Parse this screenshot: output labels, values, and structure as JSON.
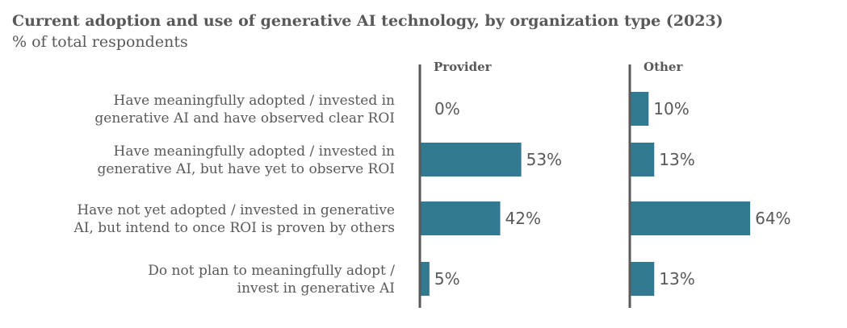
{
  "chart_data": {
    "type": "bar",
    "orientation": "horizontal",
    "title": "Current adoption and use of generative AI technology, by organization type (2023)",
    "subtitle": "% of total respondents",
    "categories": [
      [
        "Have meaningfully adopted / invested in",
        "generative AI and have observed clear ROI"
      ],
      [
        "Have meaningfully adopted / invested in",
        "generative AI, but have yet to observe ROI"
      ],
      [
        "Have not yet adopted / invested in generative",
        "AI, but intend to once ROI is proven by others"
      ],
      [
        "Do not plan to meaningfully adopt /",
        "invest in generative AI"
      ]
    ],
    "series": [
      {
        "name": "Provider",
        "values": [
          0,
          53,
          42,
          5
        ],
        "labels": [
          "0%",
          "53%",
          "42%",
          "5%"
        ]
      },
      {
        "name": "Other",
        "values": [
          10,
          13,
          64,
          13
        ],
        "labels": [
          "10%",
          "13%",
          "64%",
          "13%"
        ]
      }
    ],
    "unit": "%",
    "xlim": [
      0,
      100
    ],
    "grid": false,
    "legend": "none",
    "colors": {
      "bar": "#327a91",
      "text": "#595959",
      "axis": "#595959"
    }
  }
}
